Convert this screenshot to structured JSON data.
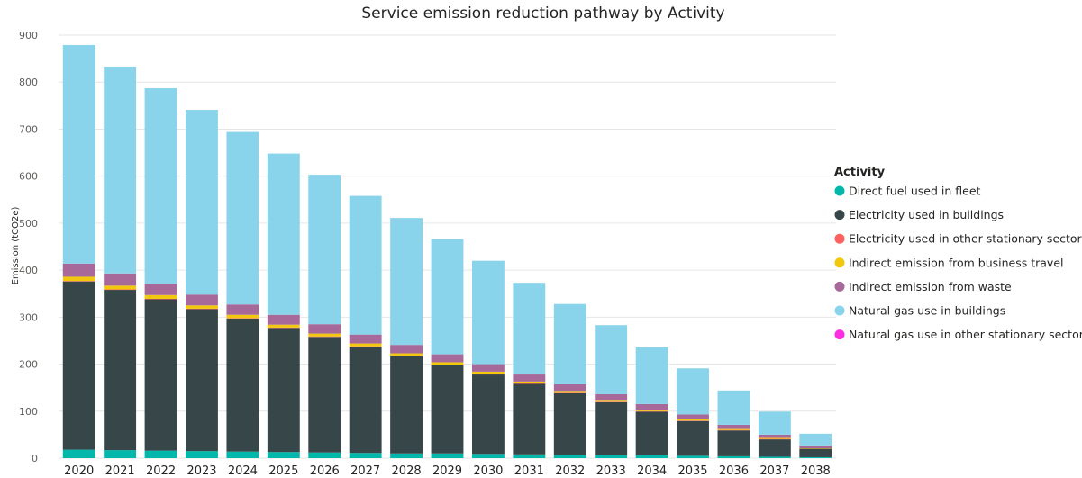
{
  "chart_data": {
    "type": "bar",
    "stacked": true,
    "title": "Service emission reduction pathway by Activity",
    "xlabel": "",
    "ylabel": "Emission (tCO2e)",
    "ylim": [
      0,
      900
    ],
    "yticks": [
      0,
      100,
      200,
      300,
      400,
      500,
      600,
      700,
      800,
      900
    ],
    "grid": true,
    "legend_position": "right",
    "legend_title": "Activity",
    "categories": [
      "2020",
      "2021",
      "2022",
      "2023",
      "2024",
      "2025",
      "2026",
      "2027",
      "2028",
      "2029",
      "2030",
      "2031",
      "2032",
      "2033",
      "2034",
      "2035",
      "2036",
      "2037",
      "2038"
    ],
    "series": [
      {
        "name": "Direct fuel used in fleet",
        "color": "#01b8aa",
        "values": [
          18,
          17,
          16,
          15,
          14,
          13,
          12,
          11,
          10,
          10,
          9,
          8,
          7,
          6,
          6,
          5,
          4,
          3,
          2
        ]
      },
      {
        "name": "Electricity used in buildings",
        "color": "#374649",
        "values": [
          358,
          341,
          322,
          302,
          283,
          264,
          246,
          226,
          207,
          188,
          169,
          150,
          131,
          113,
          93,
          74,
          55,
          37,
          18
        ]
      },
      {
        "name": "Electricity used in other stationary sector",
        "color": "#fd625e",
        "values": [
          1,
          1,
          1,
          1,
          1,
          1,
          1,
          1,
          1,
          1,
          1,
          1,
          1,
          1,
          1,
          1,
          1,
          1,
          0
        ]
      },
      {
        "name": "Indirect emission from business travel",
        "color": "#f2c80f",
        "values": [
          9,
          8,
          8,
          7,
          7,
          6,
          6,
          6,
          5,
          5,
          5,
          4,
          4,
          4,
          3,
          3,
          2,
          2,
          1
        ]
      },
      {
        "name": "Indirect emission from waste",
        "color": "#a66999",
        "values": [
          28,
          26,
          24,
          23,
          22,
          21,
          20,
          19,
          18,
          17,
          16,
          15,
          14,
          12,
          12,
          10,
          9,
          7,
          6
        ]
      },
      {
        "name": "Natural gas use in buildings",
        "color": "#8ad4eb",
        "values": [
          465,
          440,
          416,
          393,
          367,
          343,
          318,
          295,
          270,
          245,
          220,
          195,
          171,
          147,
          121,
          98,
          73,
          49,
          25
        ]
      },
      {
        "name": "Natural gas use in other stationary sector",
        "color": "#fe2fe2",
        "values": [
          0,
          0,
          0,
          0,
          0,
          0,
          0,
          0,
          0,
          0,
          0,
          0,
          0,
          0,
          0,
          0,
          0,
          0,
          0
        ]
      }
    ]
  }
}
